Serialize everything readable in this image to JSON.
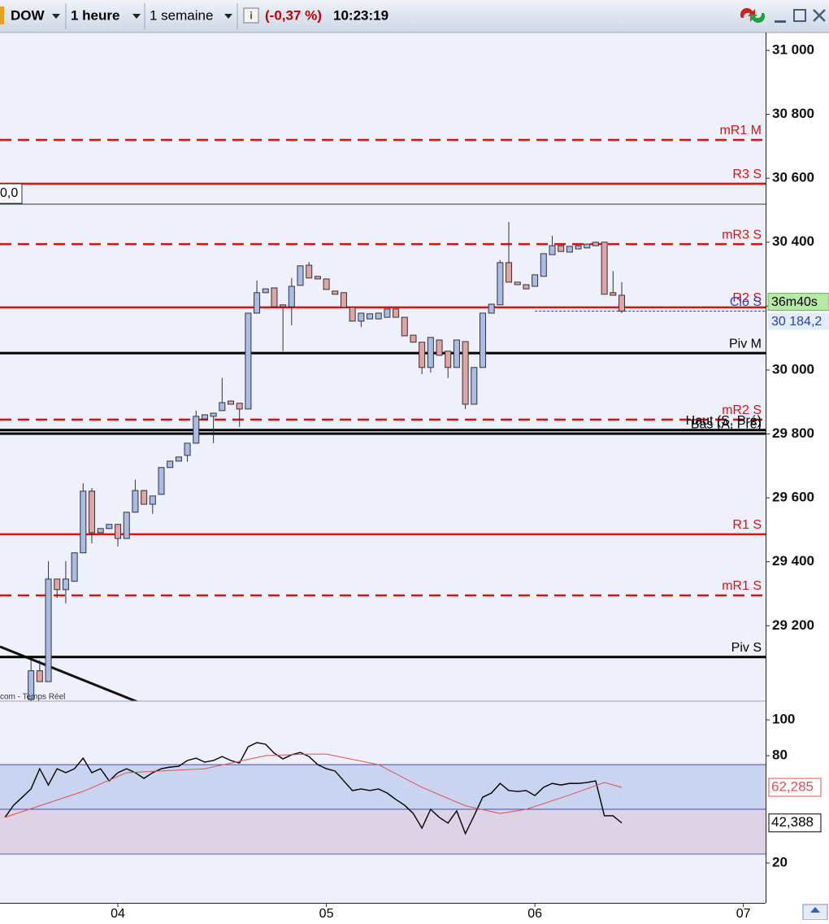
{
  "toolbar": {
    "symbol": "DOW",
    "interval": "1 heure",
    "range": "1 semaine",
    "change": "(-0,37 %)",
    "time": "10:23:19"
  },
  "chart_data": [
    {
      "type": "candlestick",
      "box_label": "0,0",
      "source": "com - Temps Réel",
      "countdown": "36m40s",
      "up_color": "#a9bce8",
      "down_color": "#e0a4a4",
      "xlim": [
        -13.57,
        74.56
      ],
      "xticks": [
        {
          "value": 0,
          "label": "04"
        },
        {
          "value": 24,
          "label": "05"
        },
        {
          "value": 48,
          "label": "06"
        },
        {
          "value": 72,
          "label": "07"
        }
      ],
      "ylim": [
        28964,
        31056
      ],
      "yticks": [
        {
          "value": 29200,
          "label": "29 200"
        },
        {
          "value": 29400,
          "label": "29 400"
        },
        {
          "value": 29600,
          "label": "29 600"
        },
        {
          "value": 29800,
          "label": "29 800"
        },
        {
          "value": 30000,
          "label": "30 000"
        },
        {
          "value": 30200,
          "label": "30 200"
        },
        {
          "value": 30400,
          "label": "30 400"
        },
        {
          "value": 30600,
          "label": "30 600"
        },
        {
          "value": 30800,
          "label": "30 800"
        },
        {
          "value": 31000,
          "label": "31 000"
        }
      ],
      "levels": [
        {
          "name": "mR1 M",
          "value": 30720,
          "color": "#e01010",
          "style": "dashed"
        },
        {
          "name": "R3 S",
          "value": 30583,
          "color": "#e01010",
          "style": "solid"
        },
        {
          "name": "mR3 S",
          "value": 30394,
          "color": "#e01010",
          "style": "dashed"
        },
        {
          "name": "R2 S",
          "value": 30196,
          "color": "#e01010",
          "style": "solid"
        },
        {
          "name": "Clo S",
          "value": 30184.2,
          "color": "#3040d0",
          "style": "dotted",
          "x_start": 48
        },
        {
          "name": "Piv M",
          "value": 30053,
          "color": "#000000",
          "style": "solid"
        },
        {
          "name": "mR2 S",
          "value": 29845,
          "color": "#e01010",
          "style": "dashed"
        },
        {
          "name": "Haut (S, Pré)",
          "value": 29812,
          "color": "#000000",
          "style": "solid"
        },
        {
          "name": "Bas (A, Pré)",
          "value": 29801,
          "color": "#000000",
          "style": "solid"
        },
        {
          "name": "R1 S",
          "value": 29486,
          "color": "#e01010",
          "style": "solid"
        },
        {
          "name": "mR1 S",
          "value": 29295,
          "color": "#e01010",
          "style": "dashed"
        },
        {
          "name": "Piv S",
          "value": 29102,
          "color": "#000000",
          "style": "solid"
        }
      ],
      "x": [
        -10,
        -9,
        -8,
        -7,
        -6,
        -5,
        -4,
        -3,
        -2,
        -1,
        0,
        1,
        2,
        3,
        4,
        5,
        6,
        7,
        8,
        9,
        10,
        11,
        12,
        13,
        14,
        15,
        16,
        17,
        18,
        19,
        20,
        21,
        22,
        23,
        24,
        25,
        26,
        27,
        28,
        29,
        30,
        31,
        32,
        33,
        34,
        35,
        36,
        37,
        38,
        39,
        40,
        41,
        42,
        43,
        44,
        45,
        46,
        47,
        48,
        49,
        50,
        51,
        52,
        53,
        54,
        55,
        56,
        57,
        58
      ],
      "open": [
        28969,
        29059,
        29025,
        29346,
        29313,
        29339,
        29428,
        29621,
        29491,
        29504,
        29517,
        29473,
        29555,
        29623,
        29580,
        29611,
        29695,
        29715,
        29733,
        29771,
        29847,
        29855,
        29873,
        29903,
        29896,
        29878,
        30178,
        30242,
        30257,
        30204,
        30198,
        30265,
        30328,
        30293,
        30285,
        30247,
        30242,
        30196,
        30153,
        30160,
        30160,
        30165,
        30191,
        30165,
        30109,
        30087,
        30008,
        30094,
        30059,
        30008,
        30089,
        29893,
        30008,
        30178,
        30204,
        30336,
        30275,
        30267,
        30262,
        30293,
        30361,
        30389,
        30369,
        30379,
        30382,
        30400,
        30400,
        30242,
        30234
      ],
      "high": [
        29092,
        29092,
        29402,
        29346,
        29402,
        29428,
        29646,
        29631,
        29504,
        29517,
        29517,
        29555,
        29657,
        29623,
        29606,
        29695,
        29715,
        29728,
        29771,
        29873,
        29860,
        29865,
        29975,
        29903,
        29896,
        30178,
        30280,
        30254,
        30257,
        30204,
        30288,
        30326,
        30338,
        30293,
        30285,
        30247,
        30242,
        30196,
        30178,
        30176,
        30178,
        30191,
        30191,
        30165,
        30109,
        30087,
        30102,
        30094,
        30059,
        30094,
        30089,
        30008,
        30178,
        30206,
        30344,
        30463,
        30275,
        30267,
        30298,
        30364,
        30420,
        30389,
        30387,
        30389,
        30394,
        30400,
        30400,
        30310,
        30275
      ],
      "low": [
        28964,
        29025,
        29025,
        29287,
        29270,
        29339,
        29428,
        29458,
        29491,
        29504,
        29448,
        29473,
        29555,
        29580,
        29550,
        29611,
        29695,
        29715,
        29713,
        29771,
        29847,
        29771,
        29873,
        29893,
        29822,
        29878,
        30178,
        30242,
        30198,
        30059,
        30140,
        30265,
        30288,
        30285,
        30252,
        30237,
        30196,
        30153,
        30135,
        30160,
        30160,
        30165,
        30165,
        30107,
        30087,
        29987,
        29992,
        30046,
        29975,
        30008,
        29878,
        29893,
        30008,
        30178,
        30204,
        30275,
        30267,
        30254,
        30262,
        30293,
        30361,
        30371,
        30369,
        30379,
        30382,
        30389,
        30237,
        30234,
        30178
      ],
      "close": [
        29059,
        29025,
        29346,
        29313,
        29346,
        29428,
        29621,
        29491,
        29504,
        29517,
        29473,
        29555,
        29623,
        29580,
        29606,
        29695,
        29715,
        29728,
        29771,
        29855,
        29860,
        29865,
        29898,
        29893,
        29878,
        30178,
        30242,
        30254,
        30198,
        30198,
        30262,
        30326,
        30288,
        30285,
        30252,
        30237,
        30196,
        30153,
        30178,
        30176,
        30178,
        30191,
        30165,
        30107,
        30087,
        30008,
        30102,
        30046,
        30008,
        30094,
        29893,
        30008,
        30178,
        30206,
        30336,
        30275,
        30267,
        30254,
        30298,
        30364,
        30389,
        30371,
        30387,
        30389,
        30394,
        30389,
        30237,
        30234,
        30184.2
      ],
      "value_labels": [
        null,
        null,
        null,
        null,
        null,
        null,
        null,
        null,
        null,
        null,
        null,
        null,
        null,
        null,
        null,
        null,
        null,
        null,
        null,
        null,
        null,
        null,
        null,
        null,
        null,
        null,
        null,
        null,
        null,
        null,
        null,
        null,
        null,
        null,
        null,
        null,
        null,
        null,
        null,
        null,
        null,
        null,
        null,
        null,
        null,
        null,
        null,
        null,
        null,
        null,
        null,
        null,
        null,
        null,
        null,
        null,
        null,
        null,
        null,
        null,
        null,
        null,
        null,
        null,
        null,
        null,
        null,
        null,
        "30 184,2"
      ]
    },
    {
      "type": "line",
      "xlim": [
        -13.57,
        74.56
      ],
      "ylim": [
        -2.3,
        110.5
      ],
      "yticks": [
        20,
        80,
        100
      ],
      "bands": [
        {
          "from": 50,
          "to": 75,
          "color": "#c9d5f0"
        },
        {
          "from": 25,
          "to": 50,
          "color": "#ddd2e6"
        }
      ],
      "series": [
        {
          "color": "#000000",
          "x": [
            -13,
            -12,
            -11,
            -10,
            -9,
            -8,
            -7,
            -6,
            -5,
            -4,
            -3,
            -2,
            -1,
            0,
            1,
            2,
            3,
            4,
            5,
            6,
            7,
            8,
            9,
            10,
            11,
            12,
            13,
            14,
            15,
            16,
            17,
            18,
            19,
            20,
            21,
            22,
            23,
            24,
            25,
            26,
            27,
            28,
            29,
            30,
            31,
            32,
            33,
            34,
            35,
            36,
            37,
            38,
            39,
            40,
            41,
            42,
            43,
            44,
            45,
            46,
            47,
            48,
            49,
            50,
            51,
            52,
            53,
            54,
            55,
            56,
            57,
            58
          ],
          "values": [
            45.5,
            52.3,
            56.8,
            61.4,
            72.7,
            63.6,
            72.7,
            70.5,
            72.7,
            78.6,
            70.5,
            72.7,
            65.9,
            70.5,
            72.7,
            70.5,
            67.3,
            70.5,
            72.7,
            73.6,
            74.1,
            77.3,
            78.6,
            76.4,
            77.3,
            79.5,
            77.3,
            75.9,
            85.0,
            87.3,
            86.4,
            81.4,
            78.2,
            80.5,
            81.8,
            79.5,
            75.0,
            72.7,
            71.4,
            65.9,
            60.5,
            61.4,
            60.5,
            61.4,
            59.1,
            55.5,
            52.3,
            47.7,
            39.5,
            50.0,
            45.5,
            42.3,
            49.1,
            36.4,
            46.4,
            56.8,
            59.1,
            64.5,
            60.5,
            60.0,
            60.5,
            57.7,
            62.3,
            64.5,
            63.6,
            64.5,
            64.5,
            65.0,
            65.9,
            46.4,
            46.4,
            42.388
          ],
          "value_labels": [
            null,
            null,
            null,
            null,
            null,
            null,
            null,
            null,
            null,
            null,
            null,
            null,
            null,
            null,
            null,
            null,
            null,
            null,
            null,
            null,
            null,
            null,
            null,
            null,
            null,
            null,
            null,
            null,
            null,
            null,
            null,
            null,
            null,
            null,
            null,
            null,
            null,
            null,
            null,
            null,
            null,
            null,
            null,
            null,
            null,
            null,
            null,
            null,
            null,
            null,
            null,
            null,
            null,
            null,
            null,
            null,
            null,
            null,
            null,
            null,
            null,
            null,
            null,
            null,
            null,
            null,
            null,
            null,
            null,
            null,
            null,
            "42,388"
          ]
        },
        {
          "color": "#e05050",
          "x": [
            -13,
            -4,
            1,
            10,
            17,
            22,
            24,
            30,
            35,
            40,
            44,
            47,
            52,
            56,
            58
          ],
          "values": [
            45.5,
            60,
            70.5,
            72.7,
            80,
            80.9,
            80.9,
            75,
            62.3,
            52,
            47.7,
            50,
            58,
            65,
            62.285
          ],
          "value_labels": [
            null,
            null,
            null,
            null,
            null,
            null,
            null,
            null,
            null,
            null,
            null,
            null,
            null,
            null,
            "62,285"
          ]
        }
      ]
    }
  ]
}
